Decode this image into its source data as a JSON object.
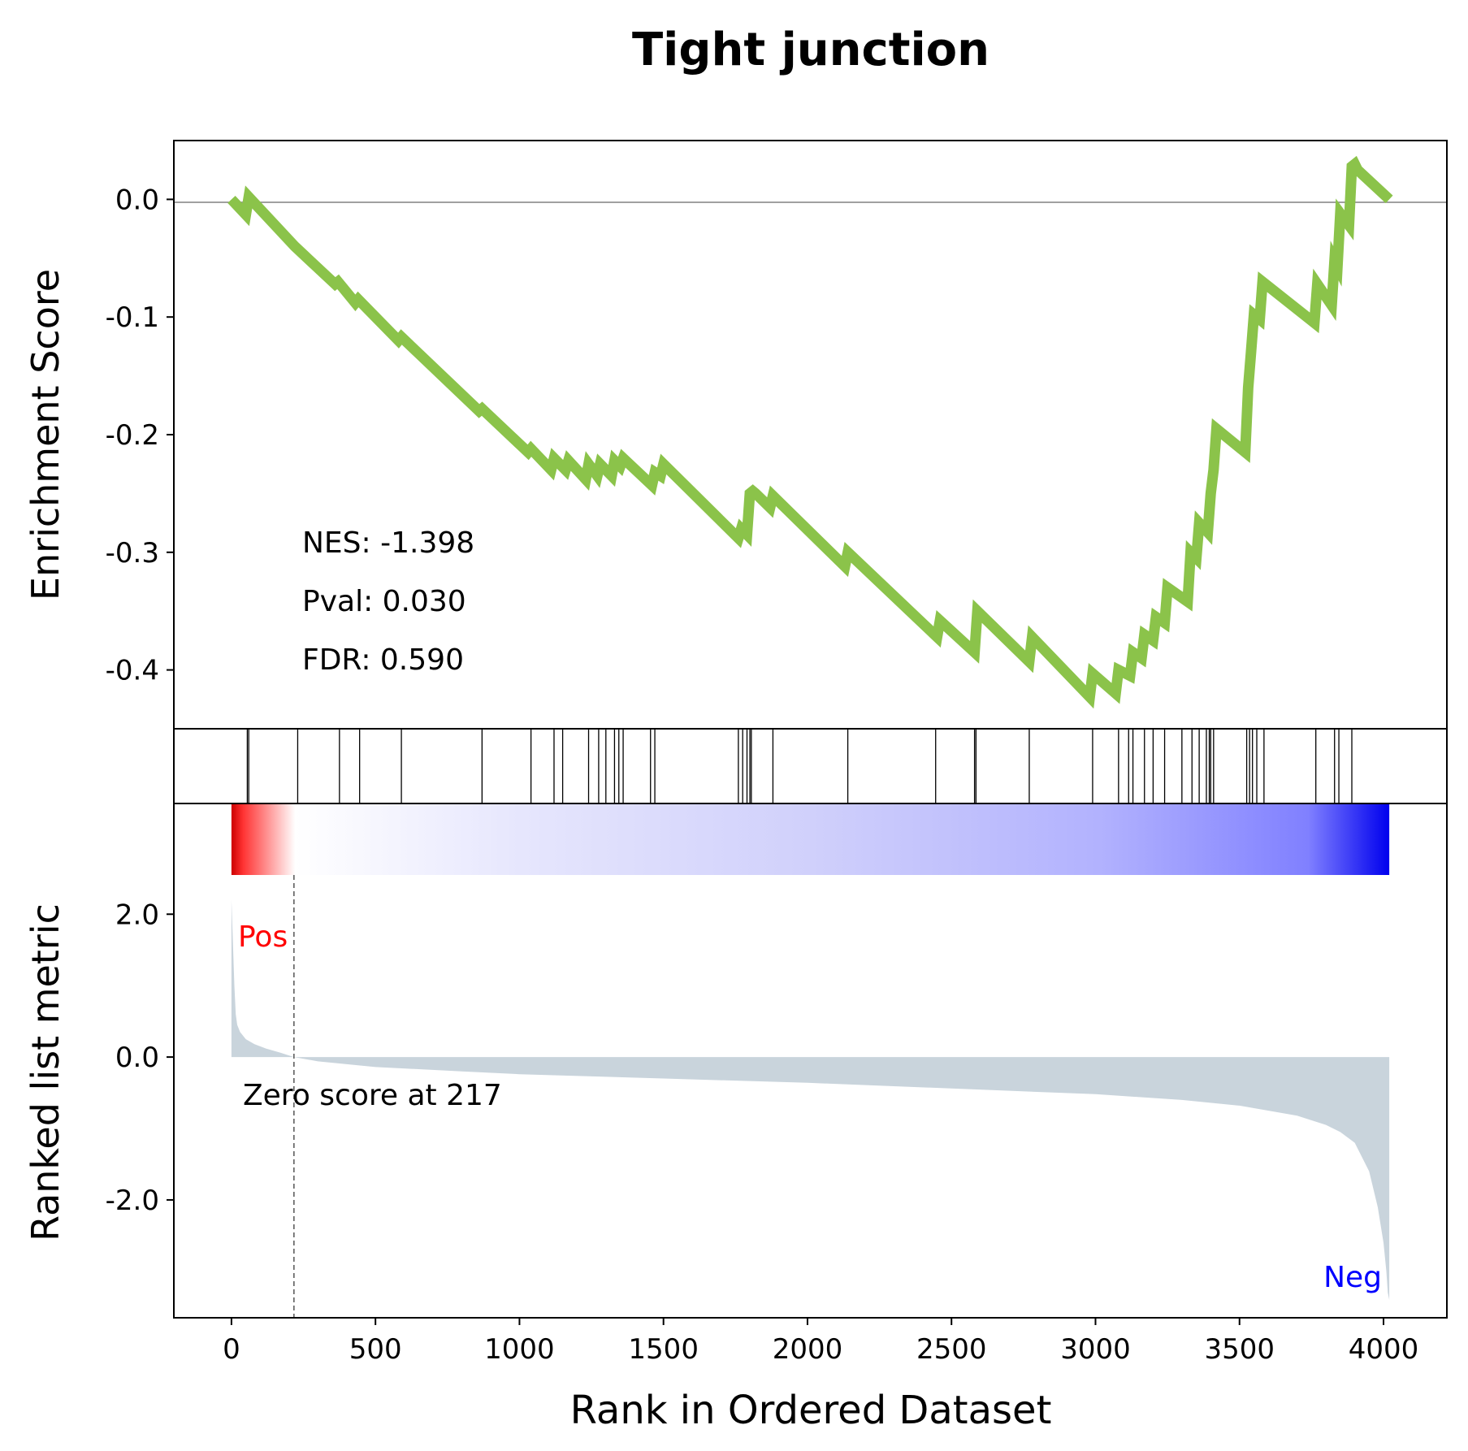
{
  "chart_data": {
    "type": "line",
    "title": "Tight junction",
    "xlabel": "Rank in Ordered Dataset",
    "xlim": [
      -200,
      4220
    ],
    "x_ticks": [
      0,
      500,
      1000,
      1500,
      2000,
      2500,
      3000,
      3500,
      4000
    ],
    "panels": {
      "enrichment": {
        "ylabel": "Enrichment Score",
        "ylim": [
          -0.45,
          0.05
        ],
        "y_ticks": [
          0.0,
          -0.1,
          -0.2,
          -0.3,
          -0.4
        ],
        "y_tick_labels": [
          "0.0",
          "-0.1",
          "-0.2",
          "-0.3",
          "-0.4"
        ],
        "zero_line": true,
        "line_color": "#8bc34a",
        "stats": {
          "nes": "NES: -1.398",
          "pval": "Pval: 0.030",
          "fdr": "FDR: 0.590"
        },
        "series": [
          {
            "x": [
              0,
              50,
              60,
              220,
              360,
              370,
              430,
              440,
              580,
              590,
              860,
              870,
              1030,
              1040,
              1110,
              1120,
              1160,
              1170,
              1230,
              1240,
              1270,
              1280,
              1320,
              1330,
              1350,
              1360,
              1460,
              1470,
              1490,
              1500,
              1760,
              1770,
              1790,
              1800,
              1810,
              1820,
              1870,
              1880,
              2130,
              2140,
              2450,
              2460,
              2580,
              2590,
              2770,
              2780,
              2980,
              2990,
              3070,
              3080,
              3120,
              3130,
              3160,
              3170,
              3200,
              3210,
              3240,
              3250,
              3320,
              3330,
              3350,
              3360,
              3390,
              3400,
              3410,
              3420,
              3520,
              3530,
              3540,
              3550,
              3570,
              3580,
              3760,
              3770,
              3820,
              3830,
              3840,
              3850,
              3880,
              3890,
              3900,
              3910,
              4020
            ],
            "y": [
              0.0,
              -0.013,
              0.002,
              -0.04,
              -0.072,
              -0.07,
              -0.088,
              -0.085,
              -0.12,
              -0.117,
              -0.18,
              -0.178,
              -0.215,
              -0.212,
              -0.23,
              -0.22,
              -0.23,
              -0.222,
              -0.238,
              -0.225,
              -0.235,
              -0.225,
              -0.235,
              -0.222,
              -0.227,
              -0.22,
              -0.243,
              -0.232,
              -0.235,
              -0.225,
              -0.288,
              -0.28,
              -0.285,
              -0.25,
              -0.248,
              -0.25,
              -0.262,
              -0.252,
              -0.312,
              -0.3,
              -0.372,
              -0.358,
              -0.385,
              -0.35,
              -0.393,
              -0.372,
              -0.423,
              -0.403,
              -0.42,
              -0.4,
              -0.405,
              -0.385,
              -0.39,
              -0.37,
              -0.375,
              -0.355,
              -0.36,
              -0.33,
              -0.342,
              -0.3,
              -0.305,
              -0.275,
              -0.283,
              -0.25,
              -0.23,
              -0.195,
              -0.215,
              -0.16,
              -0.13,
              -0.098,
              -0.102,
              -0.07,
              -0.105,
              -0.072,
              -0.09,
              -0.052,
              -0.057,
              -0.012,
              -0.022,
              0.028,
              0.03,
              0.025,
              0.0
            ]
          }
        ]
      },
      "hits": {
        "positions": [
          55,
          60,
          230,
          375,
          445,
          590,
          870,
          1040,
          1120,
          1150,
          1240,
          1275,
          1300,
          1330,
          1345,
          1360,
          1455,
          1470,
          1760,
          1775,
          1790,
          1800,
          1805,
          1880,
          2140,
          2445,
          2580,
          2585,
          2770,
          2990,
          3080,
          3115,
          3130,
          3170,
          3200,
          3240,
          3300,
          3335,
          3360,
          3385,
          3395,
          3400,
          3410,
          3525,
          3535,
          3545,
          3560,
          3585,
          3765,
          3830,
          3845,
          3890
        ]
      },
      "ranked_metric": {
        "ylabel": "Ranked list metric",
        "ylim": [
          -3.65,
          3.55
        ],
        "y_ticks": [
          2.0,
          0.0,
          -2.0
        ],
        "y_tick_labels": [
          "2.0",
          "0.0",
          "-2.0"
        ],
        "fill_color": "#c9d4dc",
        "pos_label": "Pos",
        "neg_label": "Neg",
        "pos_color": "#ff0000",
        "neg_color": "#0000ff",
        "zero_cross_rank": 217,
        "zero_score_label": "Zero score at 217",
        "curve": {
          "x": [
            0,
            5,
            10,
            15,
            20,
            30,
            50,
            80,
            120,
            170,
            217,
            300,
            500,
            800,
            1000,
            1500,
            2000,
            2500,
            3000,
            3300,
            3500,
            3700,
            3800,
            3850,
            3900,
            3950,
            3980,
            4000,
            4010,
            4015,
            4020
          ],
          "y": [
            2.2,
            1.6,
            1.0,
            0.6,
            0.45,
            0.35,
            0.25,
            0.18,
            0.12,
            0.06,
            0.0,
            -0.06,
            -0.14,
            -0.2,
            -0.24,
            -0.3,
            -0.36,
            -0.44,
            -0.52,
            -0.6,
            -0.68,
            -0.82,
            -0.95,
            -1.05,
            -1.2,
            -1.6,
            -2.1,
            -2.6,
            -3.0,
            -3.3,
            -3.4
          ]
        },
        "gradient_colors": [
          "#ff0000",
          "#ffffff",
          "#e8e8fc",
          "#c4c4fa",
          "#8a8aff",
          "#0000ff"
        ]
      }
    }
  }
}
